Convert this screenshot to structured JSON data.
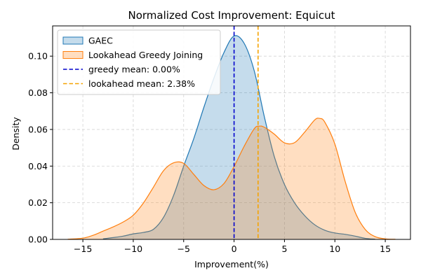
{
  "chart_data": {
    "type": "area",
    "title": "Normalized Cost Improvement: Equicut",
    "xlabel": "Improvement(%)",
    "ylabel": "Density",
    "xlim": [
      -18,
      17.5
    ],
    "ylim": [
      0,
      0.1165
    ],
    "x_ticks": [
      -15,
      -10,
      -5,
      0,
      5,
      10,
      15
    ],
    "x_tick_labels": [
      "−15",
      "−10",
      "−5",
      "0",
      "5",
      "10",
      "15"
    ],
    "y_ticks": [
      0,
      0.02,
      0.04,
      0.06,
      0.08,
      0.1
    ],
    "y_tick_labels": [
      "0.00",
      "0.02",
      "0.04",
      "0.06",
      "0.08",
      "0.10"
    ],
    "grid": true,
    "legend_position": "top-left",
    "series": [
      {
        "name": "GAEC",
        "kind": "density-fill",
        "color": "#1f77b4",
        "x": [
          -13,
          -12,
          -11,
          -10,
          -9,
          -8,
          -7,
          -6,
          -5,
          -4,
          -3,
          -2,
          -1,
          0,
          1,
          2,
          3,
          4,
          5,
          6,
          7,
          8,
          9,
          10,
          11,
          12,
          13,
          14
        ],
        "values": [
          0.0003,
          0.001,
          0.0018,
          0.003,
          0.0038,
          0.0055,
          0.012,
          0.024,
          0.04,
          0.055,
          0.072,
          0.088,
          0.102,
          0.111,
          0.107,
          0.092,
          0.067,
          0.045,
          0.03,
          0.02,
          0.013,
          0.008,
          0.005,
          0.0035,
          0.0028,
          0.0018,
          0.0006,
          0.0001
        ]
      },
      {
        "name": "Lookahead Greedy Joining",
        "kind": "density-fill",
        "color": "#ff7f0e",
        "x": [
          -16.5,
          -15,
          -14,
          -13,
          -12,
          -11,
          -10,
          -9,
          -8,
          -7,
          -6,
          -5,
          -4,
          -3,
          -2,
          -1,
          0,
          1,
          2,
          2.5,
          3,
          4,
          5,
          6,
          7,
          8,
          8.5,
          9,
          10,
          11,
          12,
          13,
          14,
          15,
          16
        ],
        "values": [
          0.0001,
          0.0007,
          0.0022,
          0.0045,
          0.0068,
          0.0095,
          0.0132,
          0.0198,
          0.0285,
          0.0375,
          0.0418,
          0.0415,
          0.0355,
          0.0294,
          0.0271,
          0.0305,
          0.0398,
          0.0508,
          0.0604,
          0.0618,
          0.0612,
          0.0574,
          0.0527,
          0.0528,
          0.0585,
          0.0652,
          0.066,
          0.064,
          0.052,
          0.032,
          0.015,
          0.0055,
          0.0015,
          0.0003,
          0.0001
        ]
      },
      {
        "name": "greedy mean: 0.00%",
        "kind": "vline",
        "x": 0,
        "color": "#0000cc",
        "style": "dashed"
      },
      {
        "name": "lookahead mean: 2.38%",
        "kind": "vline",
        "x": 2.38,
        "color": "#f5a300",
        "style": "dashed"
      }
    ]
  }
}
